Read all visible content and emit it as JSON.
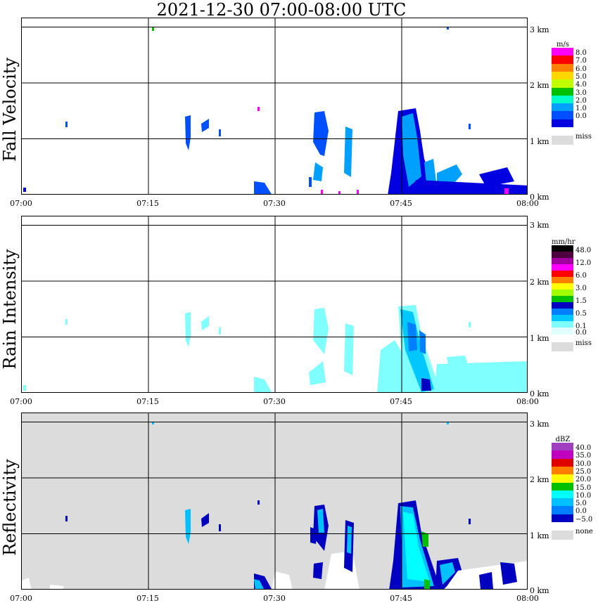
{
  "title": "2021-12-30   07:00-08:00 UTC",
  "colors": {
    "miss": "#dcdcdc",
    "background": "#ffffff"
  },
  "panels": [
    {
      "id": "fall-velocity",
      "ylabel": "Fall Velocity",
      "background": "#ffffff",
      "xticks": [
        "07:00",
        "07:15",
        "07:30",
        "07:45",
        "08:00"
      ],
      "yticks": [
        "0 km",
        "1 km",
        "2 km",
        "3 km"
      ],
      "legend": {
        "unit": "m/s",
        "entries": [
          {
            "label": "8.0",
            "color": "#ff00ff"
          },
          {
            "label": "7.0",
            "color": "#ff0000"
          },
          {
            "label": "6.0",
            "color": "#ff8000"
          },
          {
            "label": "5.0",
            "color": "#ffd700"
          },
          {
            "label": "4.0",
            "color": "#c0ff00"
          },
          {
            "label": "3.0",
            "color": "#00c000"
          },
          {
            "label": "2.0",
            "color": "#00ffc8"
          },
          {
            "label": "1.0",
            "color": "#00a0ff"
          },
          {
            "label": "0.0",
            "color": "#0050ff"
          },
          {
            "label": "",
            "color": "#0000e0"
          }
        ],
        "miss_label": "miss"
      }
    },
    {
      "id": "rain-intensity",
      "ylabel": "Rain Intensity",
      "background": "#ffffff",
      "xticks": [
        "07:00",
        "07:15",
        "07:30",
        "07:45",
        "08:00"
      ],
      "yticks": [
        "0 km",
        "1 km",
        "2 km",
        "3 km"
      ],
      "legend": {
        "unit": "mm/hr",
        "entries": [
          {
            "label": "48.0",
            "color": "#000000"
          },
          {
            "label": "",
            "color": "#500040"
          },
          {
            "label": "12.0",
            "color": "#a000a0"
          },
          {
            "label": "",
            "color": "#ff00ff"
          },
          {
            "label": "6.0",
            "color": "#ff0000"
          },
          {
            "label": "",
            "color": "#ff8000"
          },
          {
            "label": "3.0",
            "color": "#ffff00"
          },
          {
            "label": "",
            "color": "#a0ff00"
          },
          {
            "label": "1.5",
            "color": "#00c000"
          },
          {
            "label": "",
            "color": "#0000c0"
          },
          {
            "label": "0.5",
            "color": "#0080ff"
          },
          {
            "label": "",
            "color": "#00c8ff"
          },
          {
            "label": "0.1",
            "color": "#80ffff"
          },
          {
            "label": "0.0",
            "color": "#e0ffff"
          }
        ],
        "miss_label": "miss"
      }
    },
    {
      "id": "reflectivity",
      "ylabel": "Reflectivity",
      "background": "#dcdcdc",
      "xticks": [
        "07:00",
        "07:15",
        "07:30",
        "07:45",
        "08:00"
      ],
      "yticks": [
        "0 km",
        "1 km",
        "2 km",
        "3 km"
      ],
      "legend": {
        "unit": "dBZ",
        "entries": [
          {
            "label": "40.0",
            "color": "#a040c0"
          },
          {
            "label": "35.0",
            "color": "#c000c0"
          },
          {
            "label": "30.0",
            "color": "#e00000"
          },
          {
            "label": "25.0",
            "color": "#ff8000"
          },
          {
            "label": "20.0",
            "color": "#ffff00"
          },
          {
            "label": "15.0",
            "color": "#00c000"
          },
          {
            "label": "10.0",
            "color": "#00ffff"
          },
          {
            "label": "5.0",
            "color": "#00c0ff"
          },
          {
            "label": "0.0",
            "color": "#0080ff"
          },
          {
            "label": "−5.0",
            "color": "#0000c0"
          }
        ],
        "miss_label": "none"
      }
    }
  ],
  "chart_data": [
    {
      "type": "heatmap",
      "title": "2021-12-30   07:00-08:00 UTC",
      "ylabel": "Fall Velocity",
      "x_range": [
        "07:00",
        "08:00"
      ],
      "y_range_km": [
        0,
        3.5
      ],
      "unit": "m/s",
      "features": [
        {
          "t_min": 1,
          "h_km": 0.1,
          "color": "#0000e0"
        },
        {
          "t_min": 5,
          "h_km": 1.3,
          "color": "#0050ff"
        },
        {
          "t_min": 15.5,
          "h_km": 3.0,
          "color": "#00c000"
        },
        {
          "t_min": 21.5,
          "h_km": 1.1,
          "color": "#0050ff"
        },
        {
          "t_min": 23.5,
          "h_km": 1.3,
          "color": "#0050ff"
        },
        {
          "t_min": 27.5,
          "h_km": 1.6,
          "color": "#ff00ff"
        },
        {
          "t_min": 29,
          "h_km": 0.15,
          "color": "#0050ff"
        },
        {
          "t_min": 35,
          "h_km": 1.1,
          "color": "#0050ff"
        },
        {
          "t_min": 39,
          "h_km": 0.8,
          "color": "#0050ff"
        },
        {
          "t_min": 47,
          "h_km": 0.8,
          "color": "#00a0ff"
        },
        {
          "t_min": 49,
          "h_km": 0.4,
          "color": "#00a0ff"
        },
        {
          "t_min": 53,
          "h_km": 0.3,
          "color": "#00a0ff"
        },
        {
          "t_min": 56.5,
          "h_km": 0.25,
          "color": "#0000e0"
        }
      ]
    },
    {
      "type": "heatmap",
      "ylabel": "Rain Intensity",
      "x_range": [
        "07:00",
        "08:00"
      ],
      "y_range_km": [
        0,
        3.5
      ],
      "unit": "mm/hr",
      "features": [
        {
          "t_min": 21.5,
          "h_km": 1.1,
          "color": "#80ffff"
        },
        {
          "t_min": 29,
          "h_km": 0.15,
          "color": "#80ffff"
        },
        {
          "t_min": 35,
          "h_km": 1.1,
          "color": "#80ffff"
        },
        {
          "t_min": 39,
          "h_km": 0.8,
          "color": "#80ffff"
        },
        {
          "t_min": 47,
          "h_km": 1.0,
          "color": "#0080ff"
        },
        {
          "t_min": 48.5,
          "h_km": 0.1,
          "color": "#0000c0"
        },
        {
          "t_min": 53,
          "h_km": 0.3,
          "color": "#80ffff"
        },
        {
          "t_min": 56.5,
          "h_km": 0.25,
          "color": "#80ffff"
        }
      ]
    },
    {
      "type": "heatmap",
      "ylabel": "Reflectivity",
      "x_range": [
        "07:00",
        "08:00"
      ],
      "y_range_km": [
        0,
        3.5
      ],
      "unit": "dBZ",
      "features": [
        {
          "t_min": 21.5,
          "h_km": 1.1,
          "color": "#00c0ff"
        },
        {
          "t_min": 29,
          "h_km": 0.15,
          "color": "#0000c0"
        },
        {
          "t_min": 35,
          "h_km": 1.1,
          "color": "#0000c0"
        },
        {
          "t_min": 39,
          "h_km": 0.8,
          "color": "#0000c0"
        },
        {
          "t_min": 47,
          "h_km": 0.9,
          "color": "#00ffff"
        },
        {
          "t_min": 48.5,
          "h_km": 0.05,
          "color": "#00c000"
        },
        {
          "t_min": 53,
          "h_km": 0.3,
          "color": "#0000c0"
        },
        {
          "t_min": 56.5,
          "h_km": 0.25,
          "color": "#0000c0"
        }
      ]
    }
  ]
}
